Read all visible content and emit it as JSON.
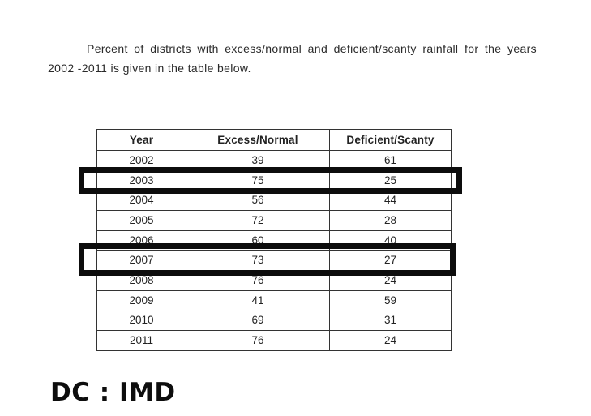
{
  "intro": {
    "text": "Percent of districts with excess/normal and deficient/scanty rainfall for the years 2002 -2011 is given in the table below."
  },
  "table": {
    "headers": [
      "Year",
      "Excess/Normal",
      "Deficient/Scanty"
    ],
    "rows": [
      [
        "2002",
        "39",
        "61"
      ],
      [
        "2003",
        "75",
        "25"
      ],
      [
        "2004",
        "56",
        "44"
      ],
      [
        "2005",
        "72",
        "28"
      ],
      [
        "2006",
        "60",
        "40"
      ],
      [
        "2007",
        "73",
        "27"
      ],
      [
        "2008",
        "76",
        "24"
      ],
      [
        "2009",
        "41",
        "59"
      ],
      [
        "2010",
        "69",
        "31"
      ],
      [
        "2011",
        "76",
        "24"
      ]
    ]
  },
  "highlighted_years": [
    "2003",
    "2007"
  ],
  "highlight_color": "#0d0d0d",
  "source_tag": "DC : IMD"
}
